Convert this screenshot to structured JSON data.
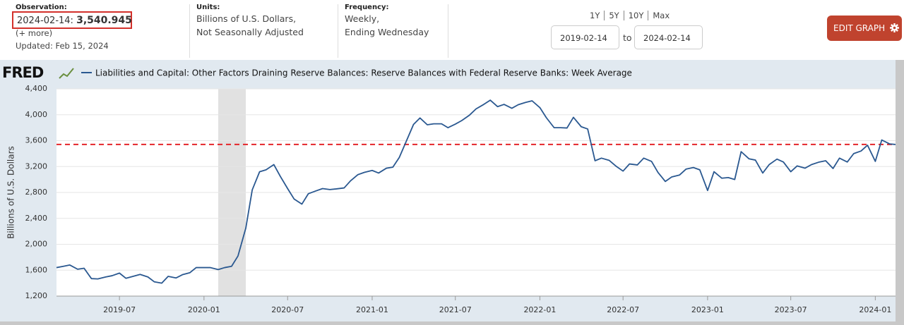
{
  "observation": {
    "label": "Observation:",
    "date_text": "2024-02-14:",
    "value": 3540.945,
    "value_label": "3,540.945",
    "more": "(+ more)",
    "updated": "Updated: Feb 15, 2024"
  },
  "units": {
    "label": "Units:",
    "lines": [
      "Billions of U.S. Dollars,",
      "Not Seasonally Adjusted"
    ]
  },
  "frequency": {
    "label": "Frequency:",
    "lines": [
      "Weekly,",
      "Ending Wednesday"
    ]
  },
  "range_links": [
    "1Y",
    "5Y",
    "10Y",
    "Max"
  ],
  "start_date": "2019-02-14",
  "to": "to",
  "end_date": "2024-02-14",
  "edit_button": "EDIT GRAPH",
  "logo": "FRED",
  "chart_data": {
    "type": "line",
    "ylabel": "Billions of U.S. Dollars",
    "x": [
      "2019-02-14",
      "2019-03-01",
      "2019-03-15",
      "2019-04-01",
      "2019-04-15",
      "2019-05-01",
      "2019-05-15",
      "2019-06-01",
      "2019-06-15",
      "2019-07-01",
      "2019-07-15",
      "2019-08-01",
      "2019-08-15",
      "2019-09-01",
      "2019-09-15",
      "2019-10-01",
      "2019-10-15",
      "2019-11-01",
      "2019-11-15",
      "2019-12-01",
      "2019-12-15",
      "2020-01-01",
      "2020-01-15",
      "2020-02-01",
      "2020-02-15",
      "2020-03-01",
      "2020-03-15",
      "2020-04-01",
      "2020-04-15",
      "2020-05-01",
      "2020-05-15",
      "2020-06-01",
      "2020-06-15",
      "2020-07-01",
      "2020-07-15",
      "2020-08-01",
      "2020-08-15",
      "2020-09-01",
      "2020-09-15",
      "2020-10-01",
      "2020-10-15",
      "2020-11-01",
      "2020-11-15",
      "2020-12-01",
      "2020-12-15",
      "2021-01-01",
      "2021-01-15",
      "2021-02-01",
      "2021-02-15",
      "2021-03-01",
      "2021-03-15",
      "2021-04-01",
      "2021-04-15",
      "2021-05-01",
      "2021-05-15",
      "2021-06-01",
      "2021-06-15",
      "2021-07-01",
      "2021-07-15",
      "2021-08-01",
      "2021-08-15",
      "2021-09-01",
      "2021-09-15",
      "2021-10-01",
      "2021-10-15",
      "2021-11-01",
      "2021-11-15",
      "2021-12-01",
      "2021-12-15",
      "2022-01-01",
      "2022-01-15",
      "2022-02-01",
      "2022-02-15",
      "2022-03-01",
      "2022-03-15",
      "2022-04-01",
      "2022-04-15",
      "2022-05-01",
      "2022-05-15",
      "2022-06-01",
      "2022-06-15",
      "2022-07-01",
      "2022-07-15",
      "2022-08-01",
      "2022-08-15",
      "2022-09-01",
      "2022-09-15",
      "2022-10-01",
      "2022-10-15",
      "2022-11-01",
      "2022-11-15",
      "2022-12-01",
      "2022-12-15",
      "2023-01-01",
      "2023-01-15",
      "2023-02-01",
      "2023-02-15",
      "2023-03-01",
      "2023-03-15",
      "2023-04-01",
      "2023-04-15",
      "2023-05-01",
      "2023-05-15",
      "2023-06-01",
      "2023-06-15",
      "2023-07-01",
      "2023-07-15",
      "2023-08-01",
      "2023-08-15",
      "2023-09-01",
      "2023-09-15",
      "2023-10-01",
      "2023-10-15",
      "2023-11-01",
      "2023-11-15",
      "2023-12-01",
      "2023-12-15",
      "2024-01-01",
      "2024-01-15",
      "2024-02-01",
      "2024-02-14"
    ],
    "series": [
      {
        "name": "Liabilities and Capital: Other Factors Draining Reserve Balances: Reserve Balances with Federal Reserve Banks: Week Average",
        "color": "#2a5890",
        "values": [
          1640,
          1660,
          1680,
          1615,
          1630,
          1470,
          1465,
          1495,
          1515,
          1555,
          1475,
          1508,
          1535,
          1495,
          1420,
          1400,
          1505,
          1480,
          1530,
          1560,
          1640,
          1640,
          1640,
          1610,
          1640,
          1660,
          1820,
          2250,
          2840,
          3120,
          3150,
          3230,
          3050,
          2860,
          2700,
          2620,
          2780,
          2825,
          2860,
          2845,
          2855,
          2870,
          2980,
          3075,
          3110,
          3140,
          3100,
          3175,
          3190,
          3340,
          3570,
          3850,
          3950,
          3845,
          3860,
          3860,
          3800,
          3855,
          3910,
          3995,
          4090,
          4160,
          4225,
          4125,
          4160,
          4100,
          4155,
          4190,
          4215,
          4110,
          3955,
          3800,
          3800,
          3795,
          3960,
          3815,
          3780,
          3290,
          3330,
          3295,
          3210,
          3130,
          3240,
          3225,
          3330,
          3280,
          3110,
          2970,
          3040,
          3070,
          3160,
          3185,
          3150,
          2830,
          3120,
          3020,
          3030,
          3000,
          3430,
          3320,
          3300,
          3100,
          3230,
          3315,
          3270,
          3120,
          3210,
          3175,
          3230,
          3270,
          3290,
          3170,
          3330,
          3270,
          3400,
          3440,
          3530,
          3280,
          3610,
          3550,
          3541
        ]
      }
    ],
    "xlim": [
      "2019-02-14",
      "2024-02-14"
    ],
    "xticks": [
      {
        "value": "2019-07-01",
        "label": "2019-07"
      },
      {
        "value": "2020-01-01",
        "label": "2020-01"
      },
      {
        "value": "2020-07-01",
        "label": "2020-07"
      },
      {
        "value": "2021-01-01",
        "label": "2021-01"
      },
      {
        "value": "2021-07-01",
        "label": "2021-07"
      },
      {
        "value": "2022-01-01",
        "label": "2022-01"
      },
      {
        "value": "2022-07-01",
        "label": "2022-07"
      },
      {
        "value": "2023-01-01",
        "label": "2023-01"
      },
      {
        "value": "2023-07-01",
        "label": "2023-07"
      },
      {
        "value": "2024-01-01",
        "label": "2024-01"
      }
    ],
    "ylim": [
      1200,
      4400
    ],
    "yticks": [
      {
        "value": 1200,
        "label": "1,200"
      },
      {
        "value": 1600,
        "label": "1,600"
      },
      {
        "value": 2000,
        "label": "2,000"
      },
      {
        "value": 2400,
        "label": "2,400"
      },
      {
        "value": 2800,
        "label": "2,800"
      },
      {
        "value": 3200,
        "label": "3,200"
      },
      {
        "value": 3600,
        "label": "3,600"
      },
      {
        "value": 4000,
        "label": "4,000"
      },
      {
        "value": 4400,
        "label": "4,400"
      }
    ],
    "grid": true,
    "shaded": [
      {
        "start": "2020-02-01",
        "end": "2020-04-01",
        "color": "#e1e1e1"
      }
    ],
    "reference_line_color": "#e4262a"
  }
}
